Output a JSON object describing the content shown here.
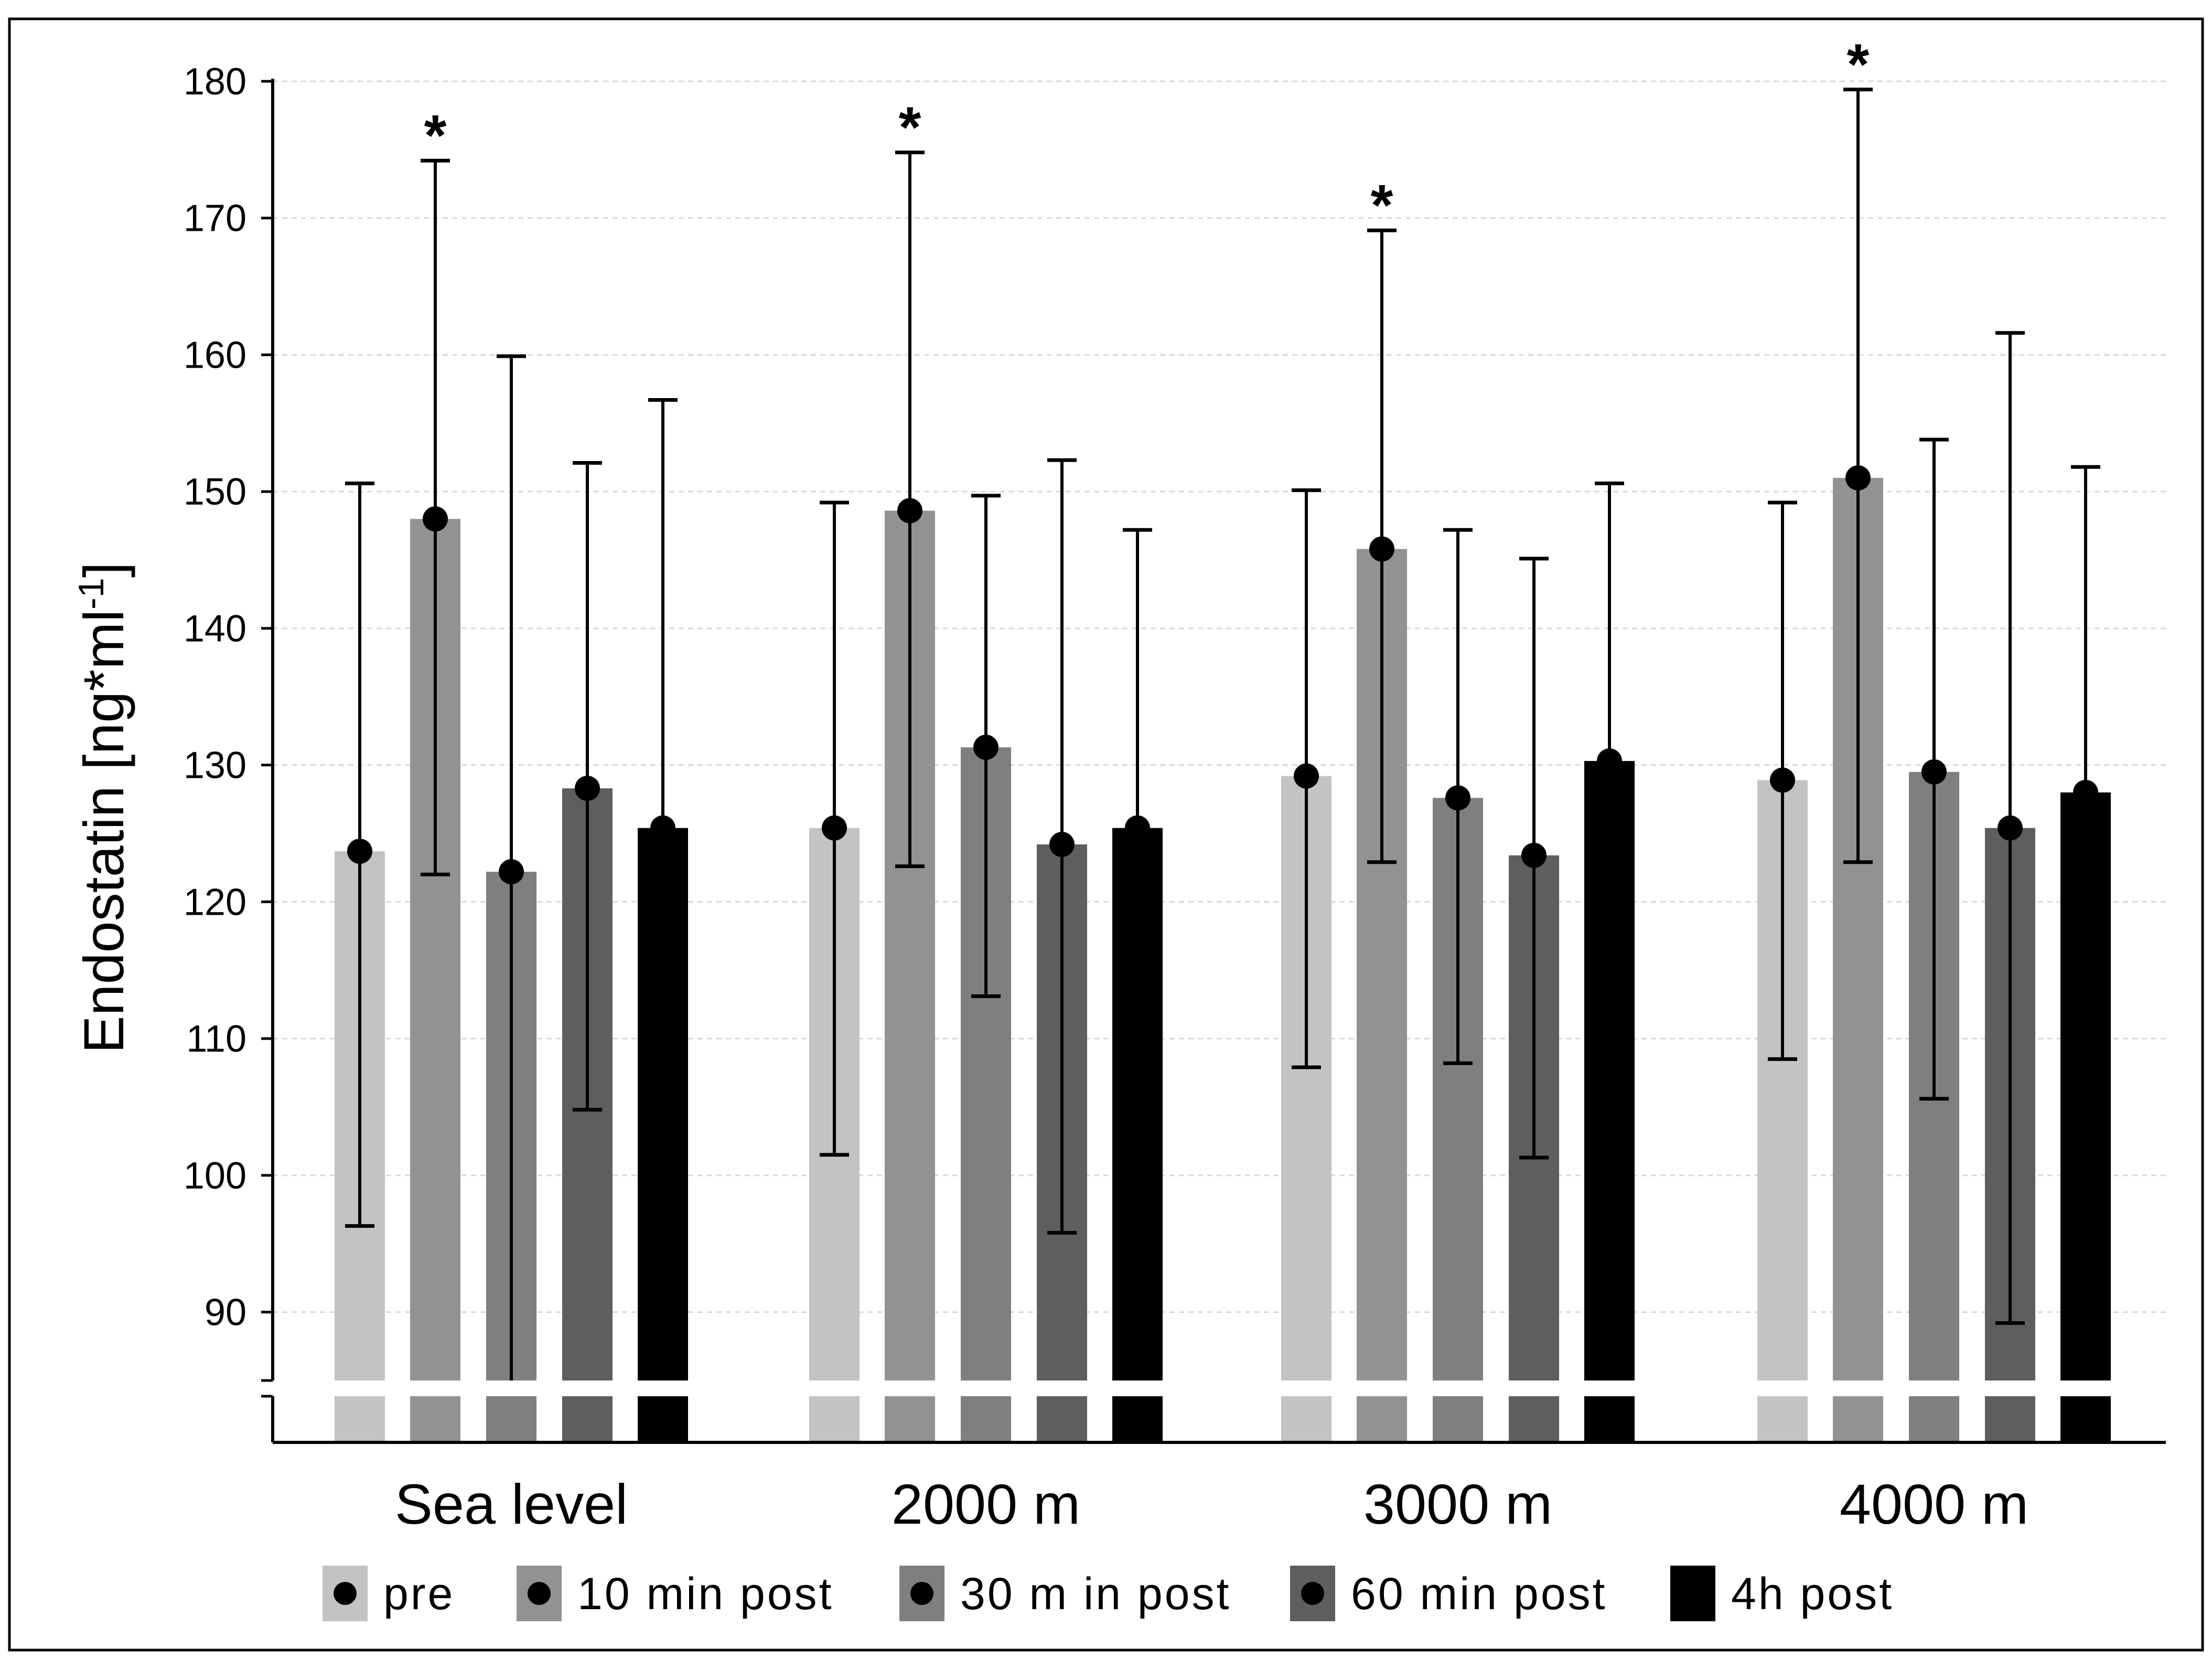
{
  "chart_data": {
    "type": "bar",
    "title": "",
    "xlabel": "",
    "ylabel": "Endostatin [ng*ml",
    "ylabel_superscript": "-1",
    "ylabel_suffix": "]",
    "ylim": [
      85,
      180
    ],
    "yticks": [
      90,
      100,
      110,
      120,
      130,
      140,
      150,
      160,
      170,
      180
    ],
    "axis_break": true,
    "grid": "horizontal dashed",
    "categories": [
      "Sea level",
      "2000 m",
      "3000 m",
      "4000 m"
    ],
    "series": [
      {
        "name": "pre",
        "color": "#c3c3c3",
        "values": [
          123.7,
          125.4,
          129.2,
          128.9
        ],
        "err_low": [
          96.3,
          101.5,
          107.9,
          108.5
        ],
        "err_high": [
          150.6,
          149.2,
          150.1,
          149.2
        ]
      },
      {
        "name": "10 min post",
        "color": "#929292",
        "values": [
          148.0,
          148.6,
          145.8,
          151.0
        ],
        "err_low": [
          122.0,
          122.6,
          122.9,
          122.9
        ],
        "err_high": [
          174.2,
          174.8,
          169.1,
          179.4
        ]
      },
      {
        "name": "30 m in post",
        "color": "#7f7f7f",
        "values": [
          122.2,
          131.3,
          127.6,
          129.5
        ],
        "err_low": [
          85.0,
          113.1,
          108.2,
          105.6
        ],
        "err_high": [
          159.9,
          149.7,
          147.2,
          153.8
        ]
      },
      {
        "name": "60 min post",
        "color": "#5e5e5e",
        "values": [
          128.3,
          124.2,
          123.4,
          125.4
        ],
        "err_low": [
          104.8,
          95.8,
          101.3,
          89.2
        ],
        "err_high": [
          152.1,
          152.3,
          145.1,
          161.6
        ]
      },
      {
        "name": "4h post",
        "color": "#000000",
        "values": [
          125.4,
          125.4,
          130.3,
          128.0
        ],
        "err_low": null,
        "err_high": [
          156.7,
          147.2,
          150.6,
          151.8
        ]
      }
    ],
    "significance": {
      "marker": "*",
      "series_index": 1,
      "categories": [
        0,
        1,
        2,
        3
      ]
    },
    "legend_position": "bottom"
  }
}
